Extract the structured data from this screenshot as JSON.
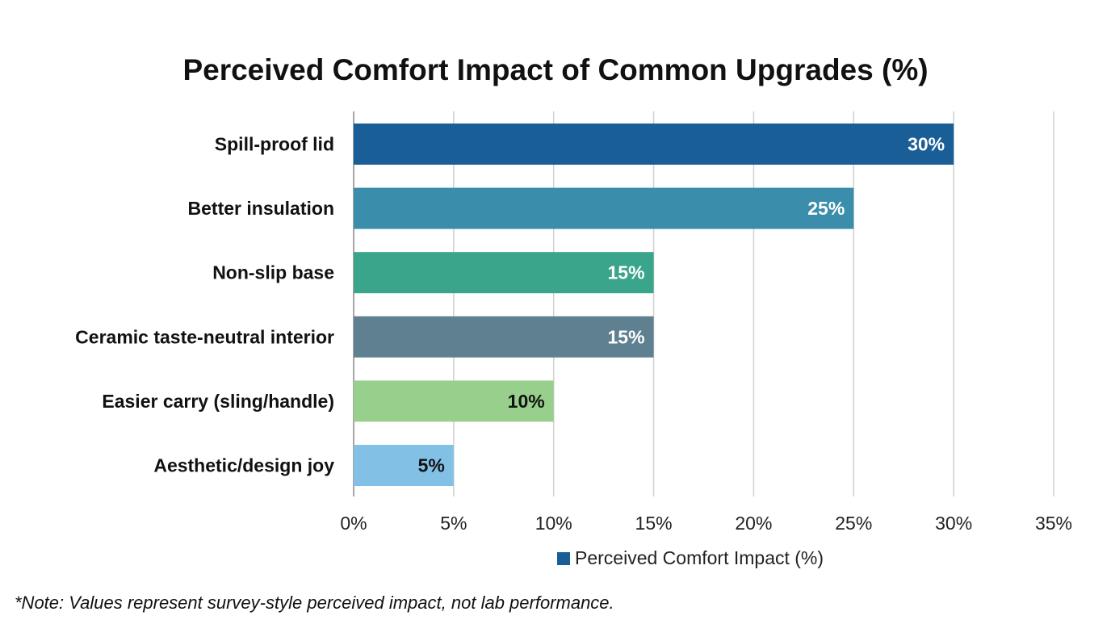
{
  "chart_data": {
    "type": "bar",
    "orientation": "horizontal",
    "title": "Perceived Comfort Impact of Common Upgrades (%)",
    "categories": [
      "Spill-proof lid",
      "Better insulation",
      "Non-slip base",
      "Ceramic taste-neutral interior",
      "Easier carry (sling/handle)",
      "Aesthetic/design joy"
    ],
    "series": [
      {
        "name": "Perceived Comfort Impact (%)",
        "values": [
          30,
          25,
          15,
          15,
          10,
          5
        ]
      }
    ],
    "data_labels": [
      "30%",
      "25%",
      "15%",
      "15%",
      "10%",
      "5%"
    ],
    "bar_colors": [
      "#1a5e98",
      "#3a8eab",
      "#3aa58a",
      "#5f8090",
      "#98cf8c",
      "#82c0e6"
    ],
    "label_colors": [
      "#ffffff",
      "#ffffff",
      "#ffffff",
      "#ffffff",
      "#111111",
      "#111111"
    ],
    "xlim": [
      0,
      35
    ],
    "x_ticks": [
      0,
      5,
      10,
      15,
      20,
      25,
      30,
      35
    ],
    "x_tick_labels": [
      "0%",
      "5%",
      "10%",
      "15%",
      "20%",
      "25%",
      "30%",
      "35%"
    ],
    "grid": true,
    "legend_position": "bottom",
    "note": "*Note: Values represent survey-style perceived impact, not lab performance."
  }
}
